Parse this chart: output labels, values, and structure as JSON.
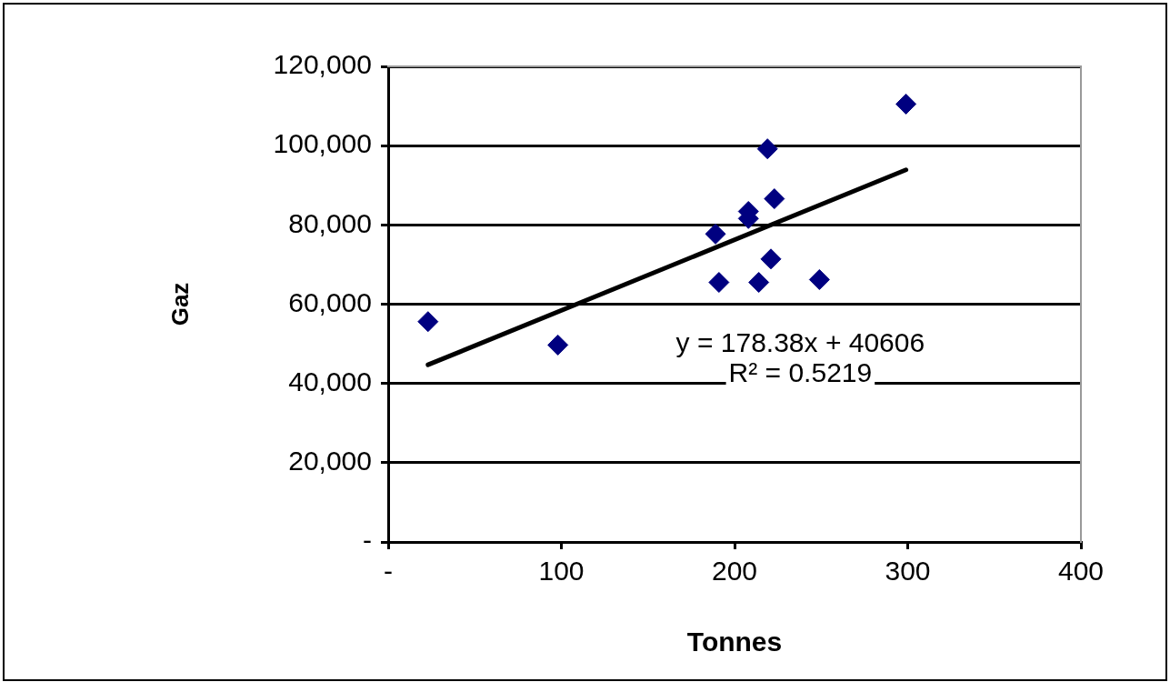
{
  "chart_data": {
    "type": "scatter",
    "xlabel": "Tonnes",
    "ylabel": "Gaz",
    "xlim": [
      0,
      400
    ],
    "xticks": [
      {
        "value": 0,
        "label": "-"
      },
      {
        "value": 100,
        "label": "100"
      },
      {
        "value": 200,
        "label": "200"
      },
      {
        "value": 300,
        "label": "300"
      },
      {
        "value": 400,
        "label": "400"
      }
    ],
    "ylim": [
      0,
      120000
    ],
    "yticks": [
      {
        "value": 0,
        "label": "-"
      },
      {
        "value": 20000,
        "label": "20,000"
      },
      {
        "value": 40000,
        "label": "40,000"
      },
      {
        "value": 60000,
        "label": "60,000"
      },
      {
        "value": 80000,
        "label": "80,000"
      },
      {
        "value": 100000,
        "label": "100,000"
      },
      {
        "value": 120000,
        "label": "120,000"
      }
    ],
    "series": [
      {
        "color": "#000080",
        "marker": "diamond",
        "x": [
          23,
          98,
          189,
          219,
          223,
          208,
          208,
          221,
          191,
          214,
          249,
          299
        ],
        "values": [
          55600,
          49700,
          77700,
          99200,
          86600,
          83400,
          81600,
          71400,
          65500,
          65500,
          66200,
          110500
        ]
      },
      {
        "type": "line",
        "color": "#000000",
        "x": [
          23,
          299
        ],
        "values": [
          44700,
          93900
        ],
        "marker": "none"
      }
    ],
    "annotations": [
      "y = 178.38x + 40606",
      "R² = 0.5219"
    ],
    "grid": "y",
    "legend": false
  }
}
